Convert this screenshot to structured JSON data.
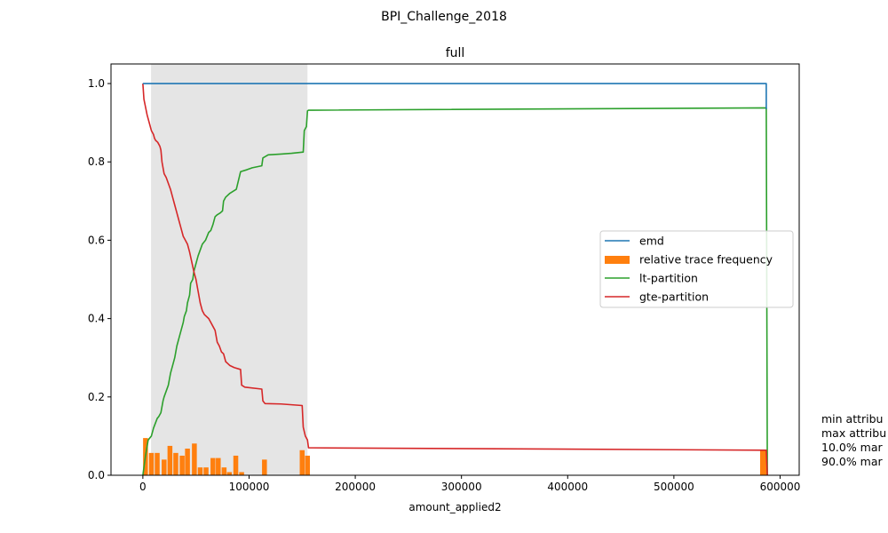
{
  "chart_data": {
    "type": "line",
    "suptitle": "BPI_Challenge_2018",
    "title": "full",
    "xlabel": "amount_applied2",
    "ylabel": "",
    "xlim": [
      -30000,
      618000
    ],
    "ylim": [
      0,
      1.05
    ],
    "xticks": [
      0,
      100000,
      200000,
      300000,
      400000,
      500000,
      600000
    ],
    "xtick_labels": [
      "0",
      "100000",
      "200000",
      "300000",
      "400000",
      "500000",
      "600000"
    ],
    "yticks": [
      0.0,
      0.2,
      0.4,
      0.6,
      0.8,
      1.0
    ],
    "ytick_labels": [
      "0.0",
      "0.2",
      "0.4",
      "0.6",
      "0.8",
      "1.0"
    ],
    "grid": false,
    "legend_position": "center-right",
    "shaded_region": {
      "x0": 7700,
      "x1": 155000,
      "color": "#e5e5e5"
    },
    "series": [
      {
        "name": "emd",
        "kind": "line",
        "color": "#1f77b4",
        "x": [
          0,
          587000,
          587000
        ],
        "y": [
          1.0,
          1.0,
          0.935
        ]
      },
      {
        "name": "relative trace frequency",
        "kind": "bar",
        "color": "#ff7f0e",
        "bar_width": 4600,
        "x": [
          2500,
          8000,
          13500,
          20000,
          25500,
          31000,
          37000,
          42000,
          48500,
          54000,
          59500,
          66000,
          71000,
          76500,
          81500,
          87500,
          93000,
          114500,
          150000,
          155000,
          583500,
          586000
        ],
        "y": [
          0.095,
          0.057,
          0.057,
          0.04,
          0.075,
          0.057,
          0.05,
          0.068,
          0.081,
          0.02,
          0.02,
          0.044,
          0.044,
          0.02,
          0.008,
          0.05,
          0.008,
          0.04,
          0.064,
          0.05,
          0.064,
          0.064
        ]
      },
      {
        "name": "lt-partition",
        "kind": "line",
        "color": "#2ca02c",
        "x": [
          0,
          2500,
          5000,
          8000,
          10000,
          13500,
          15000,
          17000,
          19000,
          20000,
          22000,
          24000,
          26000,
          28000,
          30000,
          32000,
          34000,
          36000,
          38000,
          39000,
          41000,
          42000,
          44000,
          45000,
          47000,
          48000,
          50000,
          52000,
          54000,
          56000,
          59000,
          62000,
          64000,
          66000,
          68000,
          70000,
          73000,
          75000,
          76000,
          78000,
          82000,
          85000,
          88000,
          92000,
          98000,
          103000,
          112000,
          113000,
          118000,
          130000,
          140000,
          151000,
          152000,
          154000,
          155000,
          156000,
          160000,
          587000,
          588000
        ],
        "y": [
          0.0,
          0.05,
          0.09,
          0.1,
          0.12,
          0.145,
          0.15,
          0.16,
          0.19,
          0.2,
          0.215,
          0.23,
          0.26,
          0.28,
          0.3,
          0.33,
          0.35,
          0.37,
          0.39,
          0.405,
          0.42,
          0.44,
          0.46,
          0.49,
          0.5,
          0.52,
          0.54,
          0.56,
          0.575,
          0.59,
          0.6,
          0.62,
          0.625,
          0.64,
          0.66,
          0.665,
          0.67,
          0.675,
          0.7,
          0.71,
          0.72,
          0.725,
          0.73,
          0.775,
          0.78,
          0.785,
          0.79,
          0.81,
          0.818,
          0.82,
          0.822,
          0.825,
          0.88,
          0.89,
          0.93,
          0.932,
          0.932,
          0.938,
          0.0
        ]
      },
      {
        "name": "gte-partition",
        "kind": "line",
        "color": "#d62728",
        "x": [
          0,
          1000,
          2500,
          4000,
          6000,
          8000,
          10000,
          11000,
          12000,
          14000,
          16000,
          17000,
          18000,
          20000,
          22000,
          24000,
          26000,
          28000,
          30000,
          32000,
          34000,
          36000,
          38000,
          40000,
          42000,
          44000,
          46000,
          48000,
          50000,
          52000,
          54000,
          56000,
          58000,
          62000,
          64000,
          66000,
          68000,
          70000,
          72000,
          74000,
          76000,
          78000,
          82000,
          86000,
          92000,
          93000,
          96000,
          112000,
          113000,
          115000,
          130000,
          140000,
          150000,
          151000,
          153000,
          155000,
          156000,
          160000,
          587000,
          588000
        ],
        "y": [
          1.0,
          0.96,
          0.94,
          0.92,
          0.9,
          0.88,
          0.87,
          0.86,
          0.855,
          0.85,
          0.84,
          0.83,
          0.8,
          0.77,
          0.76,
          0.745,
          0.73,
          0.71,
          0.69,
          0.67,
          0.65,
          0.63,
          0.61,
          0.6,
          0.59,
          0.57,
          0.545,
          0.52,
          0.5,
          0.47,
          0.44,
          0.42,
          0.41,
          0.4,
          0.39,
          0.38,
          0.37,
          0.34,
          0.33,
          0.315,
          0.31,
          0.29,
          0.28,
          0.275,
          0.27,
          0.23,
          0.225,
          0.22,
          0.19,
          0.183,
          0.182,
          0.18,
          0.178,
          0.123,
          0.1,
          0.09,
          0.07,
          0.07,
          0.064,
          0.0
        ]
      }
    ],
    "annotation_lines": [
      "min attribu",
      "max attribu",
      "10.0% mar",
      "90.0% mar"
    ]
  }
}
